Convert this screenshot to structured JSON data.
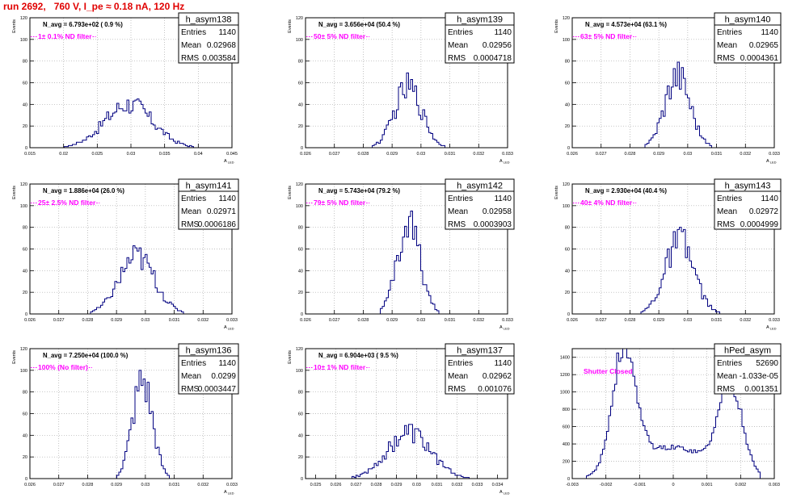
{
  "run_title": "run 2692,   760 V, I_pe ≈ 0.18 nA, 120 Hz",
  "colors": {
    "histogram_line": "#000080",
    "annotation": "#ff00ff",
    "title": "#e00000",
    "grid": "#aaaaaa"
  },
  "chart_data": [
    {
      "type": "bar",
      "name": "h_asym138",
      "ylabel": "Events",
      "xlabel": "A_LED",
      "navg": "N_avg = 6.793e+02 ( 0.9 %)",
      "filter": "1± 0.1% ND filter",
      "stats": {
        "entries": "1140",
        "mean": "0.02968",
        "rms": "0.003584"
      },
      "xlim": [
        0.015,
        0.045
      ],
      "ylim": [
        0,
        120
      ],
      "xticks": [
        0.015,
        0.02,
        0.025,
        0.03,
        0.035,
        0.04,
        0.045
      ],
      "xtick_labels": [
        "0.015",
        "0.02",
        "0.025",
        "0.03",
        "0.035",
        "0.04",
        "0.045"
      ],
      "yticks": [
        0,
        20,
        40,
        60,
        80,
        100,
        120
      ],
      "ytick_labels": [
        "0",
        "20",
        "40",
        "60",
        "80",
        "100",
        "120"
      ],
      "peak": 45,
      "row": 0,
      "col": 0
    },
    {
      "type": "bar",
      "name": "h_asym139",
      "ylabel": "Events",
      "xlabel": "A_LED",
      "navg": "N_avg = 3.656e+04 (50.4 %)",
      "filter": "50± 5% ND filter",
      "stats": {
        "entries": "1140",
        "mean": "0.02956",
        "rms": "0.0004718"
      },
      "xlim": [
        0.026,
        0.033
      ],
      "ylim": [
        0,
        120
      ],
      "xticks": [
        0.026,
        0.027,
        0.028,
        0.029,
        0.03,
        0.031,
        0.032,
        0.033
      ],
      "xtick_labels": [
        "0.026",
        "0.027",
        "0.028",
        "0.029",
        "0.03",
        "0.031",
        "0.032",
        "0.033"
      ],
      "yticks": [
        0,
        20,
        40,
        60,
        80,
        100,
        120
      ],
      "ytick_labels": [
        "0",
        "20",
        "40",
        "60",
        "80",
        "100",
        "120"
      ],
      "peak": 69,
      "row": 0,
      "col": 1
    },
    {
      "type": "bar",
      "name": "h_asym140",
      "ylabel": "Events",
      "xlabel": "A_LED",
      "navg": "N_avg = 4.573e+04 (63.1 %)",
      "filter": "63± 5% ND filter",
      "stats": {
        "entries": "1140",
        "mean": "0.02965",
        "rms": "0.0004361"
      },
      "xlim": [
        0.026,
        0.033
      ],
      "ylim": [
        0,
        120
      ],
      "xticks": [
        0.026,
        0.027,
        0.028,
        0.029,
        0.03,
        0.031,
        0.032,
        0.033
      ],
      "xtick_labels": [
        "0.026",
        "0.027",
        "0.028",
        "0.029",
        "0.03",
        "0.031",
        "0.032",
        "0.033"
      ],
      "yticks": [
        0,
        20,
        40,
        60,
        80,
        100,
        120
      ],
      "ytick_labels": [
        "0",
        "20",
        "40",
        "60",
        "80",
        "100",
        "120"
      ],
      "peak": 79,
      "row": 0,
      "col": 2
    },
    {
      "type": "bar",
      "name": "h_asym141",
      "ylabel": "Events",
      "xlabel": "A_LED",
      "navg": "N_avg = 1.886e+04 (26.0 %)",
      "filter": "25± 2.5% ND filter",
      "stats": {
        "entries": "1140",
        "mean": "0.02971",
        "rms": "0.0006186"
      },
      "xlim": [
        0.026,
        0.033
      ],
      "ylim": [
        0,
        120
      ],
      "xticks": [
        0.026,
        0.027,
        0.028,
        0.029,
        0.03,
        0.031,
        0.032,
        0.033
      ],
      "xtick_labels": [
        "0.026",
        "0.027",
        "0.028",
        "0.029",
        "0.03",
        "0.031",
        "0.032",
        "0.033"
      ],
      "yticks": [
        0,
        20,
        40,
        60,
        80,
        100,
        120
      ],
      "ytick_labels": [
        "0",
        "20",
        "40",
        "60",
        "80",
        "100",
        "120"
      ],
      "peak": 63,
      "row": 1,
      "col": 0
    },
    {
      "type": "bar",
      "name": "h_asym142",
      "ylabel": "Events",
      "xlabel": "A_LED",
      "navg": "N_avg = 5.743e+04 (79.2 %)",
      "filter": "79± 5% ND filter",
      "stats": {
        "entries": "1140",
        "mean": "0.02958",
        "rms": "0.0003903"
      },
      "xlim": [
        0.026,
        0.033
      ],
      "ylim": [
        0,
        120
      ],
      "xticks": [
        0.026,
        0.027,
        0.028,
        0.029,
        0.03,
        0.031,
        0.032,
        0.033
      ],
      "xtick_labels": [
        "0.026",
        "0.027",
        "0.028",
        "0.029",
        "0.03",
        "0.031",
        "0.032",
        "0.033"
      ],
      "yticks": [
        0,
        20,
        40,
        60,
        80,
        100,
        120
      ],
      "ytick_labels": [
        "0",
        "20",
        "40",
        "60",
        "80",
        "100",
        "120"
      ],
      "peak": 95,
      "row": 1,
      "col": 1
    },
    {
      "type": "bar",
      "name": "h_asym143",
      "ylabel": "Events",
      "xlabel": "A_LED",
      "navg": "N_avg = 2.930e+04 (40.4 %)",
      "filter": "40± 4% ND filter",
      "stats": {
        "entries": "1140",
        "mean": "0.02972",
        "rms": "0.0004999"
      },
      "xlim": [
        0.026,
        0.033
      ],
      "ylim": [
        0,
        120
      ],
      "xticks": [
        0.026,
        0.027,
        0.028,
        0.029,
        0.03,
        0.031,
        0.032,
        0.033
      ],
      "xtick_labels": [
        "0.026",
        "0.027",
        "0.028",
        "0.029",
        "0.03",
        "0.031",
        "0.032",
        "0.033"
      ],
      "yticks": [
        0,
        20,
        40,
        60,
        80,
        100,
        120
      ],
      "ytick_labels": [
        "0",
        "20",
        "40",
        "60",
        "80",
        "100",
        "120"
      ],
      "peak": 80,
      "row": 1,
      "col": 2
    },
    {
      "type": "bar",
      "name": "h_asym136",
      "ylabel": "Events",
      "xlabel": "A_LED",
      "navg": "N_avg = 7.250e+04 (100.0 %)",
      "filter": "100% (No filter)",
      "stats": {
        "entries": "1140",
        "mean": "0.0299",
        "rms": "0.0003447"
      },
      "xlim": [
        0.026,
        0.033
      ],
      "ylim": [
        0,
        120
      ],
      "xticks": [
        0.026,
        0.027,
        0.028,
        0.029,
        0.03,
        0.031,
        0.032,
        0.033
      ],
      "xtick_labels": [
        "0.026",
        "0.027",
        "0.028",
        "0.029",
        "0.03",
        "0.031",
        "0.032",
        "0.033"
      ],
      "yticks": [
        0,
        20,
        40,
        60,
        80,
        100,
        120
      ],
      "ytick_labels": [
        "0",
        "20",
        "40",
        "60",
        "80",
        "100",
        "120"
      ],
      "peak": 100,
      "row": 2,
      "col": 0
    },
    {
      "type": "bar",
      "name": "h_asym137",
      "ylabel": "Events",
      "xlabel": "A_LED",
      "navg": "N_avg = 6.904e+03 ( 9.5 %)",
      "filter": "10± 1% ND filter",
      "stats": {
        "entries": "1140",
        "mean": "0.02962",
        "rms": "0.001076"
      },
      "xlim": [
        0.0245,
        0.0345
      ],
      "ylim": [
        0,
        120
      ],
      "xticks": [
        0.025,
        0.026,
        0.027,
        0.028,
        0.029,
        0.03,
        0.031,
        0.032,
        0.033,
        0.034
      ],
      "xtick_labels": [
        "0.025",
        "0.026",
        "0.027",
        "0.028",
        "0.029",
        "0.03",
        "0.031",
        "0.032",
        "0.033",
        "0.034"
      ],
      "yticks": [
        0,
        20,
        40,
        60,
        80,
        100,
        120
      ],
      "ytick_labels": [
        "0",
        "20",
        "40",
        "60",
        "80",
        "100",
        "120"
      ],
      "peak": 50,
      "row": 2,
      "col": 1
    },
    {
      "type": "bar",
      "name": "hPed_asym",
      "ylabel": "",
      "xlabel": "",
      "navg": "",
      "filter": "Shutter Closed",
      "stats": {
        "entries": "52690",
        "mean": "-1.033e-05",
        "rms": "0.001351"
      },
      "xlim": [
        -0.003,
        0.003
      ],
      "ylim": [
        0,
        1500
      ],
      "xticks": [
        -0.003,
        -0.002,
        -0.001,
        0,
        0.001,
        0.002,
        0.003
      ],
      "xtick_labels": [
        "-0.003",
        "-0.002",
        "-0.001",
        "0",
        "0.001",
        "0.002",
        "0.003"
      ],
      "yticks": [
        0,
        200,
        400,
        600,
        800,
        1000,
        1200,
        1400
      ],
      "ytick_labels": [
        "0",
        "200",
        "400",
        "600",
        "800",
        "1000",
        "1200",
        "1400"
      ],
      "peak": 1450,
      "row": 2,
      "col": 2
    }
  ]
}
